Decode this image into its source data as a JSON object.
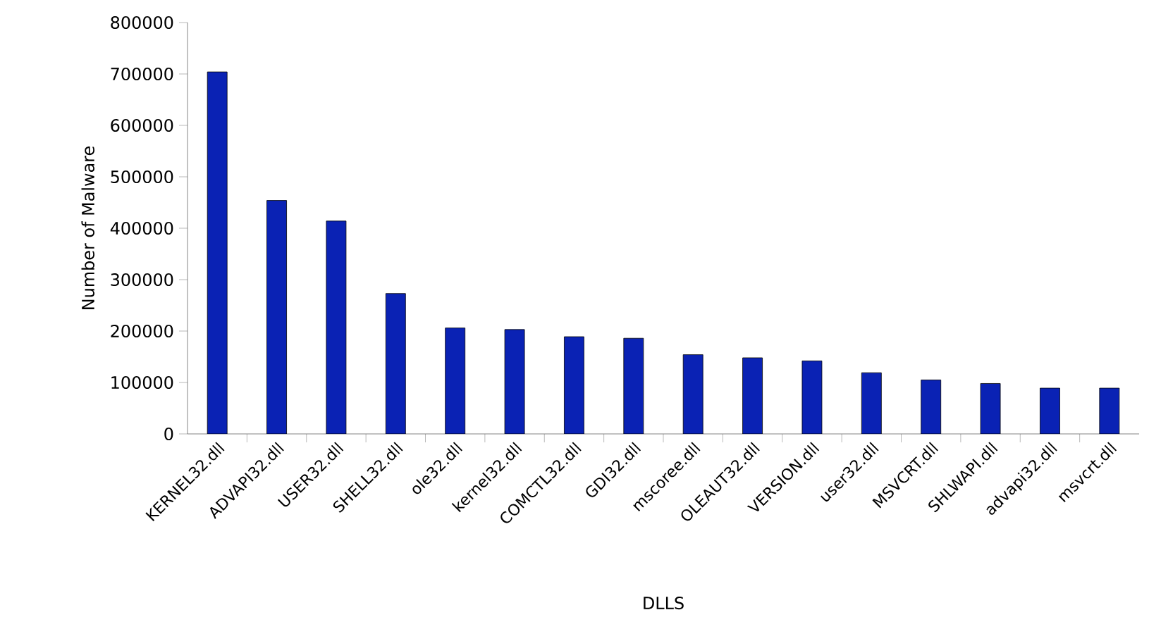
{
  "chart_data": {
    "type": "bar",
    "xlabel": "DLLS",
    "ylabel": "Number of Malware",
    "categories": [
      "KERNEL32.dll",
      "ADVAPI32.dll",
      "USER32.dll",
      "SHELL32.dll",
      "ole32.dll",
      "kernel32.dll",
      "COMCTL32.dll",
      "GDI32.dll",
      "mscoree.dll",
      "OLEAUT32.dll",
      "VERSION.dll",
      "user32.dll",
      "MSVCRT.dll",
      "SHLWAPI.dll",
      "advapi32.dll",
      "msvcrt.dll"
    ],
    "values": [
      704000,
      454000,
      414000,
      273000,
      206000,
      203000,
      189000,
      186000,
      154000,
      148000,
      142000,
      119000,
      105000,
      98000,
      89000,
      89000
    ],
    "color": "#0a22b4",
    "ylim": [
      0,
      800000
    ],
    "yticks": [
      0,
      100000,
      200000,
      300000,
      400000,
      500000,
      600000,
      700000,
      800000
    ],
    "grid": false
  }
}
